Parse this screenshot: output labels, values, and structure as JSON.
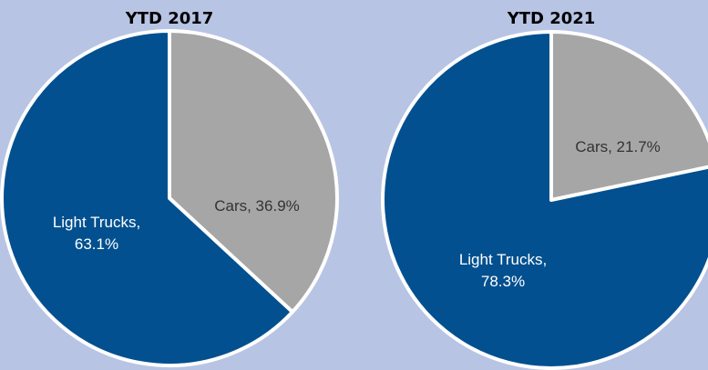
{
  "chart_data": [
    {
      "type": "pie",
      "title": "YTD 2017",
      "values": [
        36.9,
        63.1
      ],
      "value_labels": [
        "Cars, 36.9%",
        "Light Trucks, 63.1%"
      ],
      "colors": [
        "#a6a6a6",
        "#02508f"
      ]
    },
    {
      "type": "pie",
      "title": "YTD 2021",
      "values": [
        21.7,
        78.3
      ],
      "value_labels": [
        "Cars, 21.7%",
        "Light Trucks, 78.3%"
      ],
      "colors": [
        "#a6a6a6",
        "#02508f"
      ]
    }
  ]
}
